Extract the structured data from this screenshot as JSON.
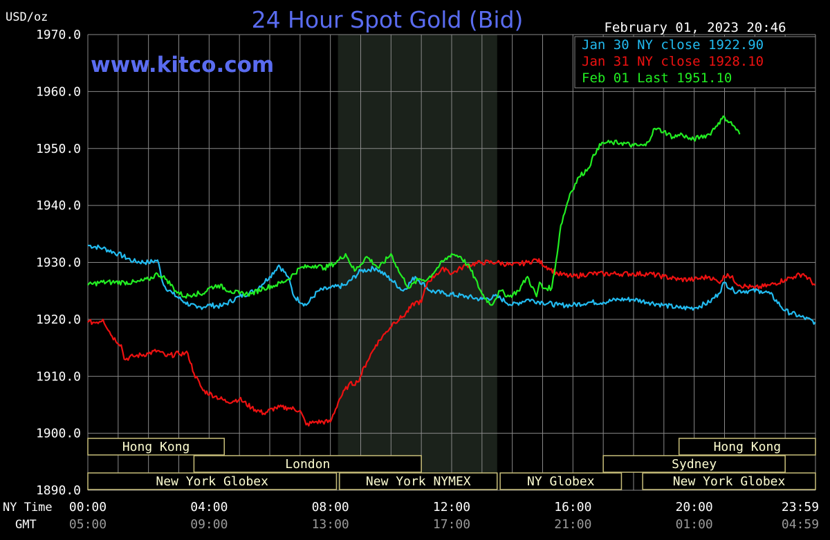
{
  "title": "24 Hour Spot Gold (Bid)",
  "unit": "USD/oz",
  "timestamp": "February 01, 2023 20:46",
  "watermark": "www.kitco.com",
  "colors": {
    "background": "#000000",
    "grid": "#8a8a8a",
    "title": "#5a6cf0",
    "jan30": "#22bbf0",
    "jan31": "#ee1111",
    "feb01": "#22ee22",
    "session_fill": "#1b221b",
    "market_text": "#ffffd2",
    "market_border": "#c9bf7a"
  },
  "chart_data": {
    "type": "line",
    "title": "24 Hour Spot Gold (Bid)",
    "ylabel": "USD/oz",
    "ylim": [
      1890,
      1970
    ],
    "xlim": [
      0,
      24
    ],
    "y_ticks": [
      "1970.0",
      "1960.0",
      "1950.0",
      "1940.0",
      "1930.0",
      "1920.0",
      "1910.0",
      "1900.0",
      "1890.0"
    ],
    "x_ticks_ny": [
      "00:00",
      "04:00",
      "08:00",
      "12:00",
      "16:00",
      "20:00",
      "23:59"
    ],
    "x_ticks_gmt": [
      "05:00",
      "09:00",
      "13:00",
      "17:00",
      "21:00",
      "01:00",
      "04:59"
    ],
    "x_row_labels": [
      "NY Time",
      "GMT"
    ],
    "grid": true,
    "legend_position": "top-right",
    "session_shade": [
      8.25,
      13.5
    ],
    "series": [
      {
        "name": "Jan 30 NY close 1922.90",
        "color": "#22bbf0",
        "points": [
          [
            0,
            1933.0
          ],
          [
            0.5,
            1932.5
          ],
          [
            1,
            1931.5
          ],
          [
            1.5,
            1930.2
          ],
          [
            2,
            1930.0
          ],
          [
            2.3,
            1930.4
          ],
          [
            2.5,
            1926.0
          ],
          [
            2.8,
            1924.5
          ],
          [
            3.2,
            1923.0
          ],
          [
            3.6,
            1922.0
          ],
          [
            4,
            1922.5
          ],
          [
            4.4,
            1922.3
          ],
          [
            5,
            1924.0
          ],
          [
            5.5,
            1925.0
          ],
          [
            6,
            1927.5
          ],
          [
            6.3,
            1929.5
          ],
          [
            6.6,
            1927.5
          ],
          [
            6.8,
            1924.0
          ],
          [
            7.2,
            1922.5
          ],
          [
            7.6,
            1925.0
          ],
          [
            8,
            1925.5
          ],
          [
            8.5,
            1926.0
          ],
          [
            9,
            1928.5
          ],
          [
            9.5,
            1929.0
          ],
          [
            10,
            1927.0
          ],
          [
            10.4,
            1925.0
          ],
          [
            10.8,
            1927.5
          ],
          [
            11.3,
            1925.0
          ],
          [
            11.8,
            1924.5
          ],
          [
            12.5,
            1924.0
          ],
          [
            13,
            1923.5
          ],
          [
            13.5,
            1924.0
          ],
          [
            14,
            1922.5
          ],
          [
            14.5,
            1923.5
          ],
          [
            15,
            1923.0
          ],
          [
            15.5,
            1922.5
          ],
          [
            16,
            1922.5
          ],
          [
            16.5,
            1923.0
          ],
          [
            17,
            1923.0
          ],
          [
            17.5,
            1923.5
          ],
          [
            18,
            1923.5
          ],
          [
            18.5,
            1923.0
          ],
          [
            19,
            1922.5
          ],
          [
            19.5,
            1922.0
          ],
          [
            20,
            1922.0
          ],
          [
            20.5,
            1923.0
          ],
          [
            20.8,
            1924.5
          ],
          [
            21,
            1926.5
          ],
          [
            21.3,
            1925.0
          ],
          [
            21.8,
            1925.0
          ],
          [
            22.2,
            1925.0
          ],
          [
            22.5,
            1924.5
          ],
          [
            23,
            1921.5
          ],
          [
            23.5,
            1920.5
          ],
          [
            23.99,
            1919.5
          ]
        ]
      },
      {
        "name": "Jan 31 NY close 1928.10",
        "color": "#ee1111",
        "points": [
          [
            0,
            1919.5
          ],
          [
            0.3,
            1919.5
          ],
          [
            0.5,
            1920.0
          ],
          [
            0.8,
            1917.0
          ],
          [
            1.1,
            1915.5
          ],
          [
            1.2,
            1913.0
          ],
          [
            1.5,
            1913.5
          ],
          [
            2,
            1914.0
          ],
          [
            2.3,
            1914.5
          ],
          [
            2.6,
            1913.5
          ],
          [
            3,
            1914.0
          ],
          [
            3.3,
            1914.0
          ],
          [
            3.5,
            1910.5
          ],
          [
            3.8,
            1907.5
          ],
          [
            4.2,
            1906.5
          ],
          [
            4.6,
            1905.5
          ],
          [
            5,
            1906.0
          ],
          [
            5.4,
            1904.5
          ],
          [
            5.8,
            1903.5
          ],
          [
            6.2,
            1904.5
          ],
          [
            6.6,
            1904.5
          ],
          [
            7,
            1904.0
          ],
          [
            7.2,
            1901.5
          ],
          [
            7.5,
            1902.0
          ],
          [
            8,
            1902.0
          ],
          [
            8.3,
            1906.0
          ],
          [
            8.6,
            1908.5
          ],
          [
            8.9,
            1909.0
          ],
          [
            9.2,
            1912.5
          ],
          [
            9.5,
            1915.5
          ],
          [
            9.8,
            1917.5
          ],
          [
            10.1,
            1919.5
          ],
          [
            10.4,
            1920.5
          ],
          [
            10.8,
            1923.0
          ],
          [
            11,
            1923.0
          ],
          [
            11.2,
            1926.5
          ],
          [
            11.5,
            1928.0
          ],
          [
            11.8,
            1929.0
          ],
          [
            12,
            1928.0
          ],
          [
            12.3,
            1929.0
          ],
          [
            12.5,
            1929.5
          ],
          [
            13,
            1930.0
          ],
          [
            13.5,
            1930.0
          ],
          [
            14,
            1929.5
          ],
          [
            14.5,
            1930.0
          ],
          [
            14.8,
            1930.5
          ],
          [
            15.2,
            1929.0
          ],
          [
            15.5,
            1928.0
          ],
          [
            16,
            1927.5
          ],
          [
            16.5,
            1928.0
          ],
          [
            17,
            1928.0
          ],
          [
            17.5,
            1928.0
          ],
          [
            18,
            1928.0
          ],
          [
            18.5,
            1928.0
          ],
          [
            19,
            1927.5
          ],
          [
            19.5,
            1927.0
          ],
          [
            20,
            1927.0
          ],
          [
            20.5,
            1927.5
          ],
          [
            20.8,
            1926.5
          ],
          [
            21.1,
            1928.0
          ],
          [
            21.5,
            1926.0
          ],
          [
            22,
            1925.5
          ],
          [
            22.5,
            1926.0
          ],
          [
            23,
            1927.0
          ],
          [
            23.3,
            1927.5
          ],
          [
            23.6,
            1928.0
          ],
          [
            23.99,
            1926.0
          ]
        ]
      },
      {
        "name": "Feb 01 Last 1951.10",
        "color": "#22ee22",
        "points": [
          [
            0,
            1926.0
          ],
          [
            0.4,
            1926.5
          ],
          [
            0.8,
            1926.5
          ],
          [
            1.2,
            1926.5
          ],
          [
            1.6,
            1926.5
          ],
          [
            2,
            1927.0
          ],
          [
            2.3,
            1928.0
          ],
          [
            2.6,
            1927.0
          ],
          [
            2.9,
            1925.0
          ],
          [
            3.2,
            1924.0
          ],
          [
            3.5,
            1924.5
          ],
          [
            3.8,
            1924.5
          ],
          [
            4,
            1925.5
          ],
          [
            4.3,
            1926.0
          ],
          [
            4.7,
            1925.0
          ],
          [
            5,
            1924.5
          ],
          [
            5.4,
            1924.5
          ],
          [
            5.8,
            1925.5
          ],
          [
            6.2,
            1926.0
          ],
          [
            6.6,
            1927.0
          ],
          [
            7,
            1929.0
          ],
          [
            7.5,
            1929.5
          ],
          [
            7.8,
            1929.0
          ],
          [
            8.2,
            1930.0
          ],
          [
            8.5,
            1931.5
          ],
          [
            8.8,
            1928.5
          ],
          [
            9.2,
            1931.0
          ],
          [
            9.6,
            1929.0
          ],
          [
            10,
            1931.5
          ],
          [
            10.3,
            1928.0
          ],
          [
            10.6,
            1925.5
          ],
          [
            10.9,
            1927.0
          ],
          [
            11.2,
            1927.0
          ],
          [
            11.6,
            1929.5
          ],
          [
            12,
            1931.5
          ],
          [
            12.3,
            1931.0
          ],
          [
            12.6,
            1929.0
          ],
          [
            13,
            1924.5
          ],
          [
            13.3,
            1922.5
          ],
          [
            13.6,
            1925.0
          ],
          [
            13.9,
            1924.0
          ],
          [
            14.2,
            1925.0
          ],
          [
            14.5,
            1927.5
          ],
          [
            14.8,
            1924.0
          ],
          [
            14.9,
            1926.5
          ],
          [
            15,
            1925.5
          ],
          [
            15.3,
            1925.5
          ],
          [
            15.4,
            1928.5
          ],
          [
            15.6,
            1936.5
          ],
          [
            15.9,
            1942.0
          ],
          [
            16.2,
            1945.0
          ],
          [
            16.5,
            1946.5
          ],
          [
            16.8,
            1950.0
          ],
          [
            17,
            1951.0
          ],
          [
            17.3,
            1951.0
          ],
          [
            17.6,
            1951.0
          ],
          [
            18,
            1950.5
          ],
          [
            18.4,
            1950.5
          ],
          [
            18.7,
            1953.5
          ],
          [
            19,
            1953.0
          ],
          [
            19.3,
            1952.0
          ],
          [
            19.6,
            1952.5
          ],
          [
            19.9,
            1951.5
          ],
          [
            20.2,
            1952.0
          ],
          [
            20.5,
            1952.5
          ],
          [
            20.8,
            1954.5
          ],
          [
            21,
            1955.5
          ],
          [
            21.3,
            1954.0
          ],
          [
            21.5,
            1952.5
          ]
        ]
      }
    ]
  },
  "markets": [
    {
      "label": "Hong Kong",
      "row": 0,
      "start": 0,
      "end": 4.5
    },
    {
      "label": "Hong Kong",
      "row": 0,
      "start": 19.5,
      "end": 24
    },
    {
      "label": "London",
      "row": 1,
      "start": 3.5,
      "end": 11
    },
    {
      "label": "Sydney",
      "row": 1,
      "start": 17,
      "end": 23
    },
    {
      "label": "New York Globex",
      "row": 2,
      "start": 0,
      "end": 8.2
    },
    {
      "label": "New York NYMEX",
      "row": 2,
      "start": 8.3,
      "end": 13.5
    },
    {
      "label": "NY Globex",
      "row": 2,
      "start": 13.6,
      "end": 17.6
    },
    {
      "label": "New York Globex",
      "row": 2,
      "start": 18.3,
      "end": 24
    }
  ]
}
